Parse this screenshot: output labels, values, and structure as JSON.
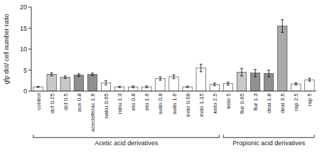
{
  "chart_data": {
    "type": "bar",
    "categories": [
      "control",
      "dcf 0.25",
      "dcf 0.5",
      "ace 0.8",
      "acecloferac 1.6",
      "nabu 0.65",
      "rabu 1.3",
      "eto 0.8",
      "eto 1.6",
      "sulin 0.8",
      "sulin 1.6",
      "indo 0.58",
      "indo 1.15",
      "keto 2.5",
      "keto 5",
      "flur 0.65",
      "flur 1.3",
      "dexi 1.8",
      "dexi 3.6",
      "rap 2.5",
      "rap 5"
    ],
    "values": [
      1.0,
      4.0,
      3.3,
      3.8,
      4.0,
      2.0,
      1.0,
      1.0,
      1.0,
      3.0,
      3.4,
      1.0,
      5.5,
      1.6,
      1.8,
      4.5,
      4.3,
      4.2,
      15.5,
      1.7,
      2.7
    ],
    "errors": [
      0.1,
      0.35,
      0.3,
      0.3,
      0.3,
      0.5,
      0.15,
      0.2,
      0.2,
      0.4,
      0.45,
      0.15,
      0.9,
      0.3,
      0.35,
      0.9,
      0.85,
      0.8,
      1.5,
      0.25,
      0.35
    ],
    "colors": [
      "#ffffff",
      "#c8c8c8",
      "#c8c8c8",
      "#909090",
      "#909090",
      "#ffffff",
      "#ffffff",
      "#ffffff",
      "#ffffff",
      "#ffffff",
      "#ffffff",
      "#ffffff",
      "#ffffff",
      "#ffffff",
      "#ffffff",
      "#c8c8c8",
      "#909090",
      "#909090",
      "#aaaaaa",
      "#ffffff",
      "#ffffff"
    ],
    "ylabel": "gfp dot/ cell number ratio",
    "ylim": [
      0,
      20
    ],
    "yticks": [
      0,
      5,
      10,
      15,
      20
    ],
    "grid": false,
    "groups": [
      {
        "label": "Acetic acid derivatives",
        "from": "control",
        "to": "keto 2.5"
      },
      {
        "label": "Propionic acid derivatives",
        "from": "keto 5",
        "to": "rap 5"
      }
    ]
  }
}
